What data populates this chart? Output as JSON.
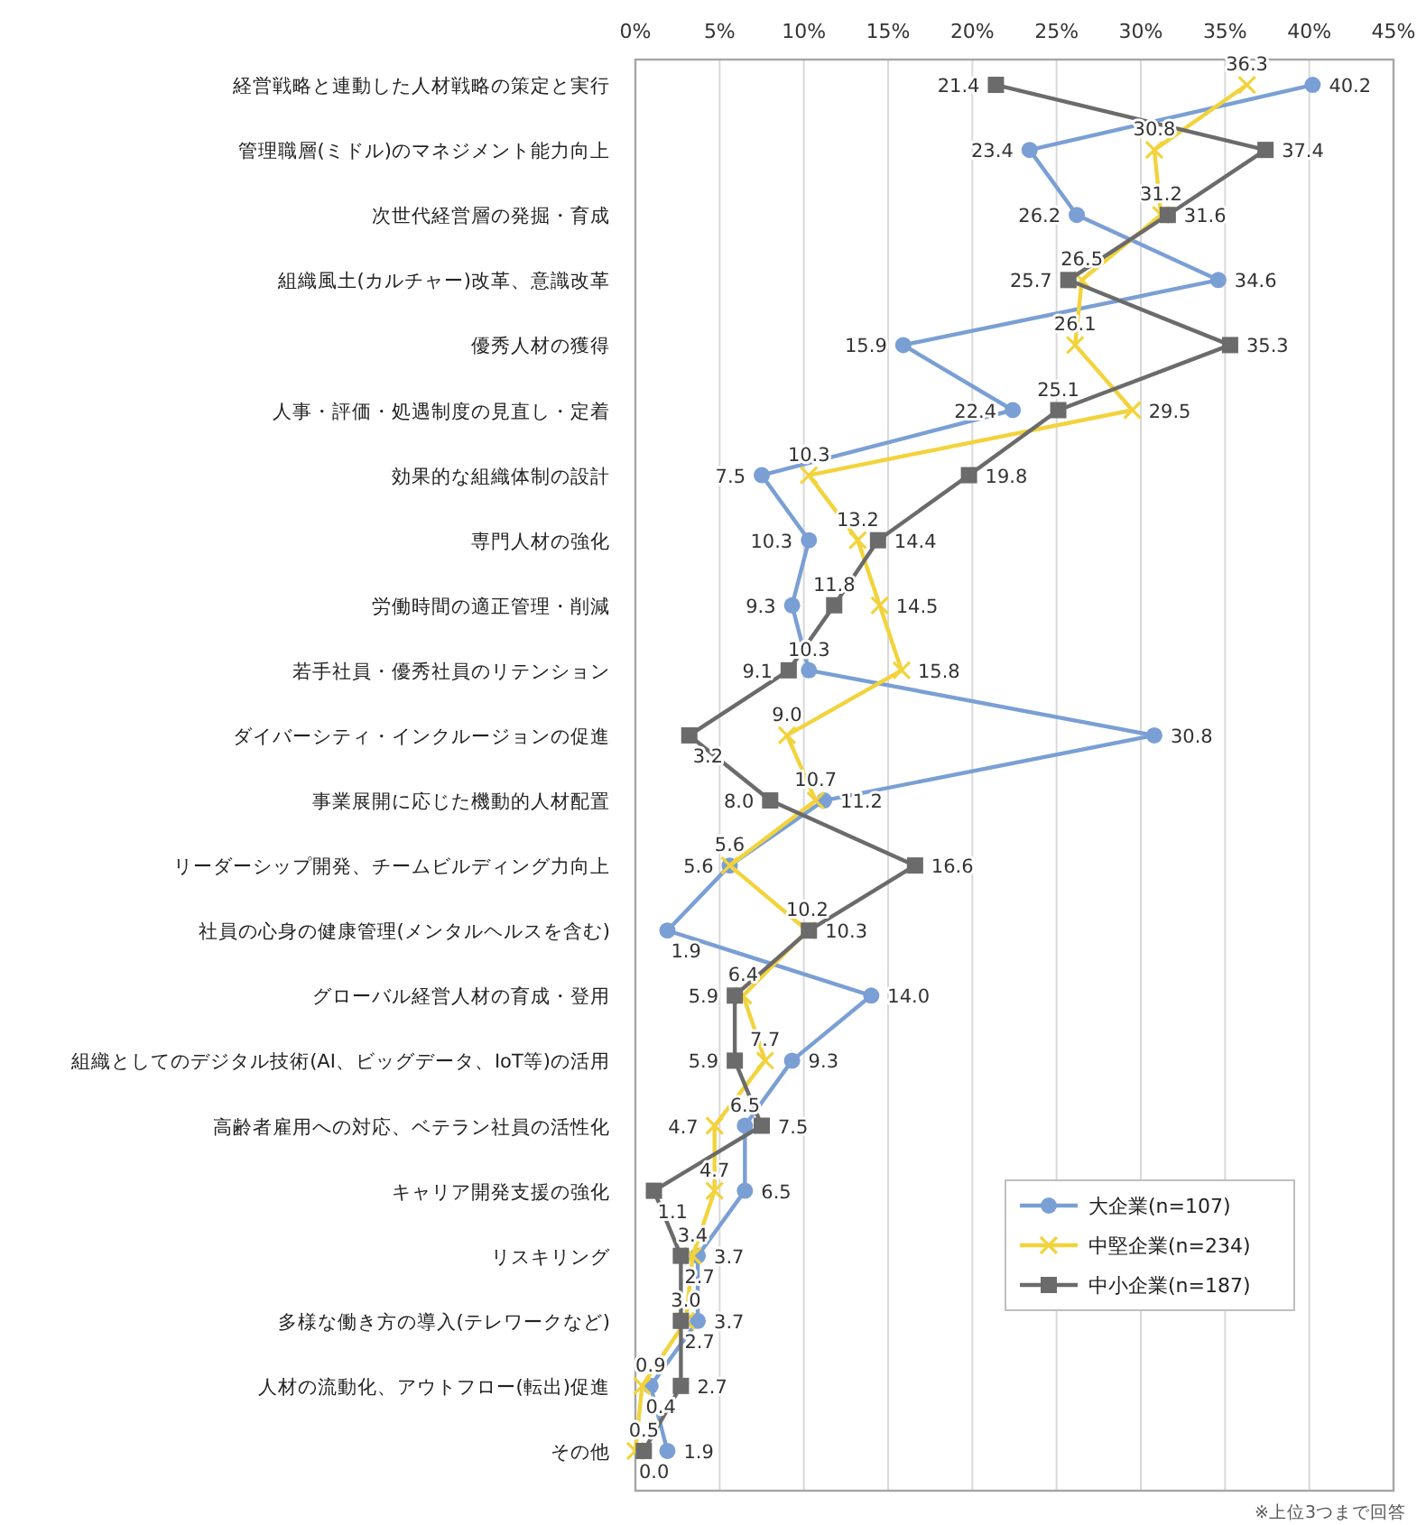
{
  "chart_data": {
    "type": "line",
    "orientation": "horizontal",
    "categories": [
      "経営戦略と連動した人材戦略の策定と実行",
      "管理職層(ミドル)のマネジメント能力向上",
      "次世代経営層の発掘・育成",
      "組織風土(カルチャー)改革、意識改革",
      "優秀人材の獲得",
      "人事・評価・処遇制度の見直し・定着",
      "効果的な組織体制の設計",
      "専門人材の強化",
      "労働時間の適正管理・削減",
      "若手社員・優秀社員のリテンション",
      "ダイバーシティ・インクルージョンの促進",
      "事業展開に応じた機動的人材配置",
      "リーダーシップ開発、チームビルディング力向上",
      "社員の心身の健康管理(メンタルヘルスを含む)",
      "グローバル経営人材の育成・登用",
      "組織としてのデジタル技術(AI、ビッグデータ、IoT等)の活用",
      "高齢者雇用への対応、ベテラン社員の活性化",
      "キャリア開発支援の強化",
      "リスキリング",
      "多様な働き方の導入(テレワークなど)",
      "人材の流動化、アウトフロー(転出)促進",
      "その他"
    ],
    "series": [
      {
        "name": "大企業(n=107)",
        "color": "#7a9fd4",
        "marker": "circle",
        "values": [
          40.2,
          23.4,
          26.2,
          34.6,
          15.9,
          22.4,
          7.5,
          10.3,
          9.3,
          10.3,
          30.8,
          11.2,
          5.6,
          1.9,
          14.0,
          9.3,
          6.5,
          6.5,
          3.7,
          3.7,
          0.9,
          1.9
        ],
        "value_labels": [
          "40.2",
          "23.4",
          "26.2",
          "34.6",
          "15.9",
          "22.4",
          "7.5",
          "10.3",
          "9.3",
          "10.3",
          "30.8",
          "11.2",
          "5.6",
          "1.9",
          "14.0",
          "9.3",
          "6.5",
          "6.5",
          "3.7",
          "3.7",
          "0.9",
          "1.9"
        ]
      },
      {
        "name": "中堅企業(n=234)",
        "color": "#f2d33c",
        "marker": "cross",
        "values": [
          36.3,
          30.8,
          31.2,
          26.5,
          26.1,
          29.5,
          10.3,
          13.2,
          14.5,
          15.8,
          9.0,
          10.7,
          5.6,
          10.2,
          6.4,
          7.7,
          4.7,
          4.7,
          3.4,
          3.0,
          0.4,
          0.0
        ],
        "value_labels": [
          "36.3",
          "30.8",
          "31.2",
          "26.5",
          "26.1",
          "29.5",
          "10.3",
          "13.2",
          "14.5",
          "15.8",
          "9.0",
          "10.7",
          "5.6",
          "10.2",
          "6.4",
          "7.7",
          "4.7",
          "4.7",
          "3.4",
          "3.0",
          "0.4",
          "0.0"
        ]
      },
      {
        "name": "中小企業(n=187)",
        "color": "#6b6b6b",
        "marker": "square",
        "values": [
          21.4,
          37.4,
          31.6,
          25.7,
          35.3,
          25.1,
          19.8,
          14.4,
          11.8,
          9.1,
          3.2,
          8.0,
          16.6,
          10.3,
          5.9,
          5.9,
          7.5,
          1.1,
          2.7,
          2.7,
          2.7,
          0.5
        ],
        "value_labels": [
          "21.4",
          "37.4",
          "31.6",
          "25.7",
          "35.3",
          "25.1",
          "19.8",
          "14.4",
          "11.8",
          "9.1",
          "3.2",
          "8.0",
          "16.6",
          "10.3",
          "5.9",
          "5.9",
          "7.5",
          "1.1",
          "2.7",
          "2.7",
          "2.7",
          "0.5"
        ]
      }
    ],
    "xlim": [
      0,
      45
    ],
    "xticks": [
      {
        "value": 0,
        "label": "0%"
      },
      {
        "value": 5,
        "label": "5%"
      },
      {
        "value": 10,
        "label": "10%"
      },
      {
        "value": 15,
        "label": "15%"
      },
      {
        "value": 20,
        "label": "20%"
      },
      {
        "value": 25,
        "label": "25%"
      },
      {
        "value": 30,
        "label": "30%"
      },
      {
        "value": 35,
        "label": "35%"
      },
      {
        "value": 40,
        "label": "40%"
      },
      {
        "value": 45,
        "label": "45%"
      }
    ],
    "grid": "x",
    "legend": "bottom right",
    "annotations": [
      "※上位3つまで回答"
    ]
  }
}
